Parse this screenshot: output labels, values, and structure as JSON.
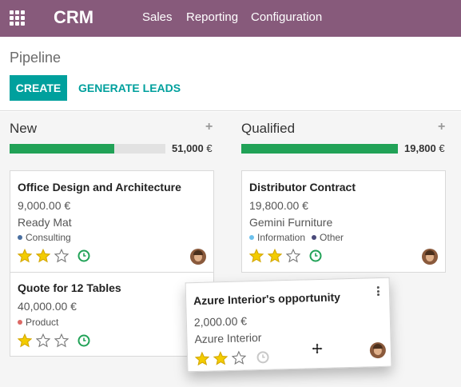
{
  "navbar": {
    "icon": "apps-grid-icon",
    "brand": "CRM",
    "menu": [
      "Sales",
      "Reporting",
      "Configuration"
    ],
    "color": "#875a7b"
  },
  "control_panel": {
    "breadcrumb": "Pipeline",
    "create_label": "CREATE",
    "generate_label": "GENERATE LEADS",
    "accent_color": "#00a09d"
  },
  "columns": [
    {
      "title": "New",
      "add_icon": "plus-icon",
      "progress": 0.67,
      "total": "51,000",
      "currency": "€",
      "cards": [
        {
          "title": "Office Design and Architecture",
          "amount": "9,000.00 €",
          "customer": "Ready Mat",
          "tags": [
            {
              "label": "Consulting",
              "color": "#4a6fa0"
            }
          ],
          "stars": 2,
          "activity_icon": "clock-icon"
        },
        {
          "title": "Quote for 12 Tables",
          "amount": "40,000.00 €",
          "customer": "",
          "tags": [
            {
              "label": "Product",
              "color": "#dc6965"
            }
          ],
          "stars": 1,
          "activity_icon": "clock-icon"
        }
      ]
    },
    {
      "title": "Qualified",
      "add_icon": "plus-icon",
      "progress": 1.0,
      "total": "19,800",
      "currency": "€",
      "cards": [
        {
          "title": "Distributor Contract",
          "amount": "19,800.00 €",
          "customer": "Gemini Furniture",
          "tags": [
            {
              "label": "Information",
              "color": "#6cc1ed"
            },
            {
              "label": "Other",
              "color": "#4a4a7a"
            }
          ],
          "stars": 2,
          "activity_icon": "clock-icon"
        }
      ]
    }
  ],
  "dragged_card": {
    "title": "Azure Interior's opportunity",
    "amount": "2,000.00 €",
    "customer": "Azure Interior",
    "stars": 2,
    "activity_icon": "clock-icon",
    "menu_icon": "kebab-menu-icon",
    "cursor_icon": "move-cursor-icon"
  },
  "colors": {
    "progress_fill": "#21a257",
    "star_on": "#f3cc00",
    "activity_ok": "#21a257"
  }
}
